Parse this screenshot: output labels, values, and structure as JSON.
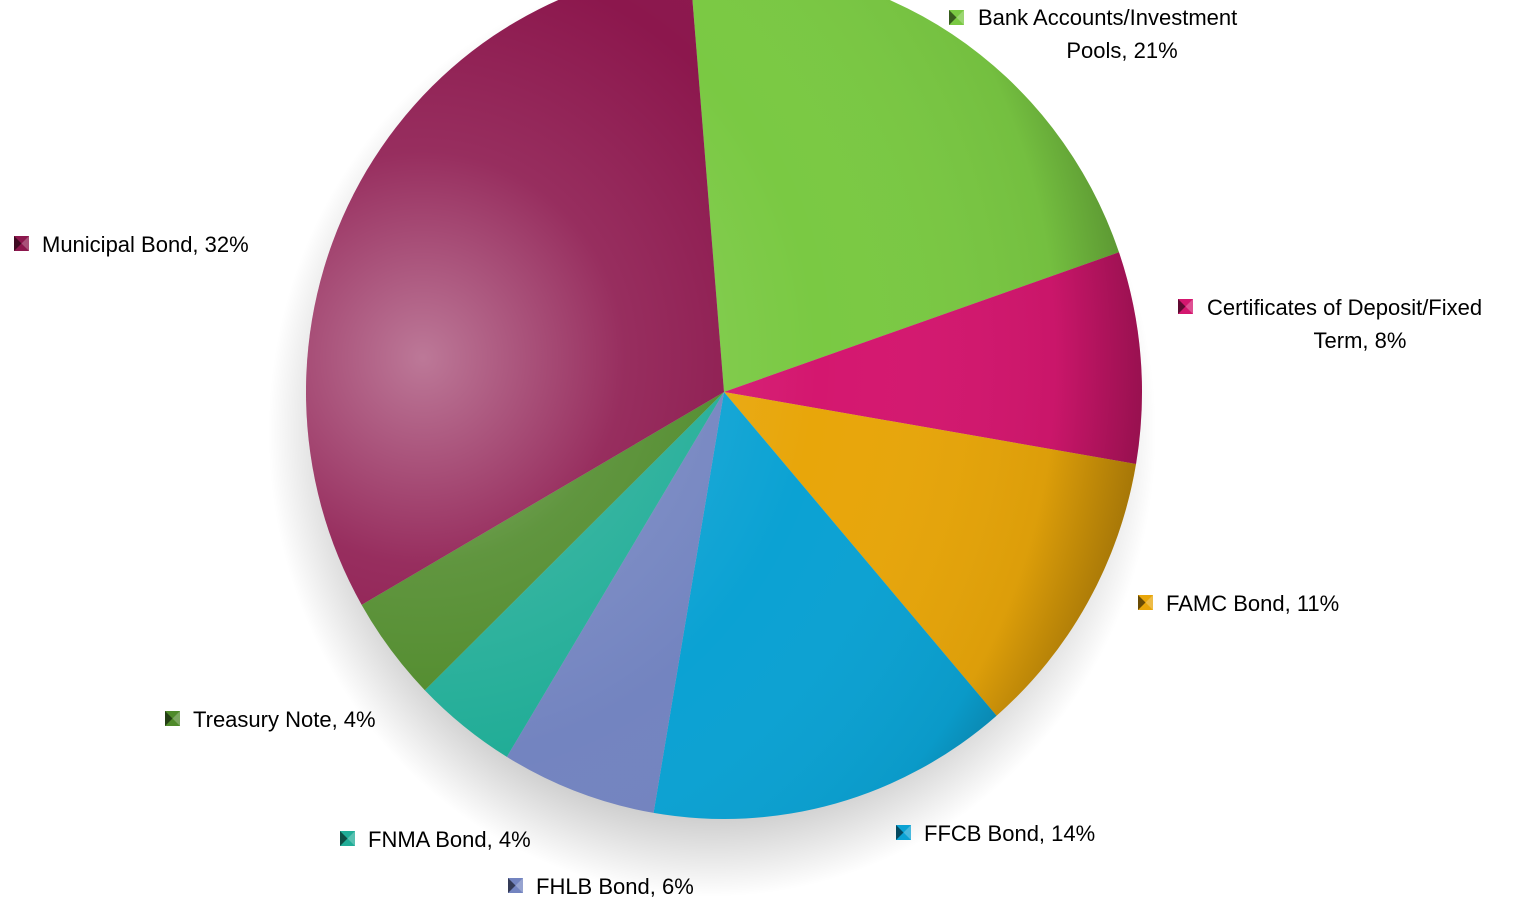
{
  "chart_data": {
    "type": "pie",
    "title": "",
    "slices": [
      {
        "label": "Bank Accounts/Investment Pools",
        "label_lines": [
          "Bank Accounts/Investment",
          "Pools, 21%"
        ],
        "value": 21,
        "color": "#7ac943"
      },
      {
        "label": "Certificates of Deposit/Fixed Term",
        "label_lines": [
          "Certificates of Deposit/Fixed",
          "Term, 8%"
        ],
        "value": 8,
        "color": "#d4176f"
      },
      {
        "label": "FAMC Bond",
        "label_lines": [
          "FAMC Bond, 11%"
        ],
        "value": 11,
        "color": "#e8a60a"
      },
      {
        "label": "FFCB Bond",
        "label_lines": [
          "FFCB Bond, 14%"
        ],
        "value": 14,
        "color": "#0ba2d3"
      },
      {
        "label": "FHLB Bond",
        "label_lines": [
          "FHLB Bond, 6%"
        ],
        "value": 6,
        "color": "#7384c0"
      },
      {
        "label": "FNMA Bond",
        "label_lines": [
          "FNMA Bond, 4%"
        ],
        "value": 4,
        "color": "#21ad97"
      },
      {
        "label": "Treasury Note",
        "label_lines": [
          "Treasury Note, 4%"
        ],
        "value": 4,
        "color": "#4f8a2a"
      },
      {
        "label": "Municipal Bond",
        "label_lines": [
          "Municipal Bond, 32%"
        ],
        "value": 32,
        "color": "#8c174d"
      }
    ],
    "legend": "none",
    "data_labels": "category name and percentage"
  }
}
